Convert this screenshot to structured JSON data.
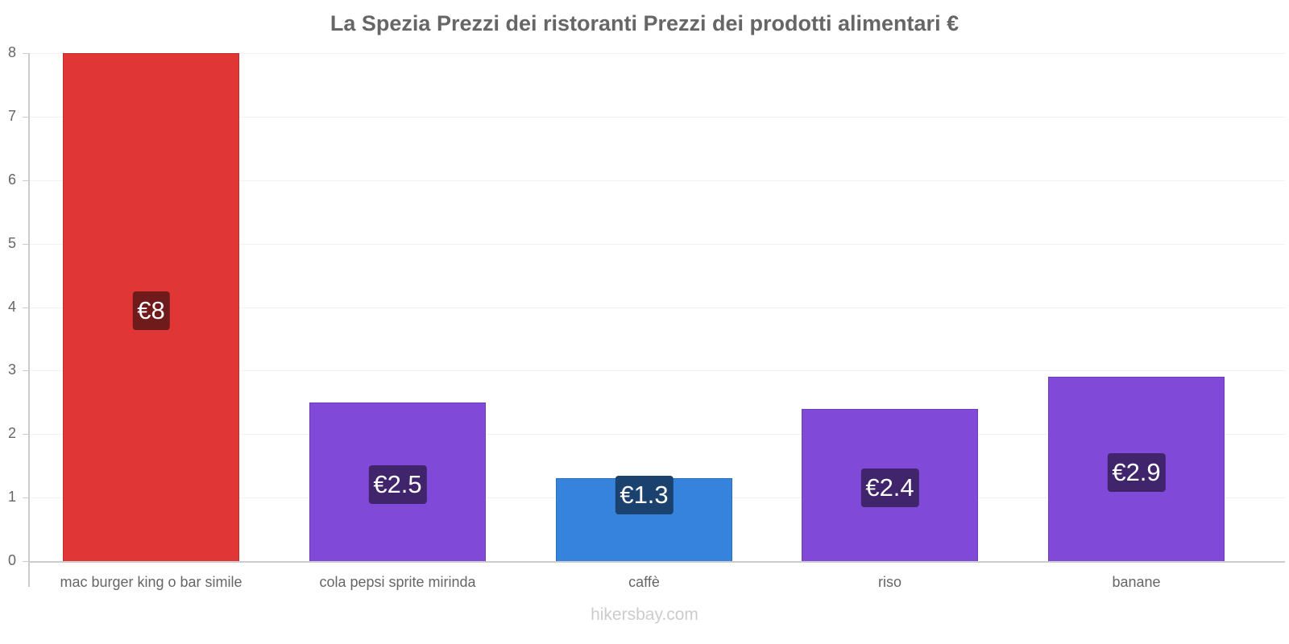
{
  "chart_data": {
    "type": "bar",
    "title": "La Spezia Prezzi dei ristoranti Prezzi dei prodotti alimentari €",
    "xlabel": "",
    "ylabel": "",
    "ylim": [
      0,
      8
    ],
    "yticks": [
      0,
      1,
      2,
      3,
      4,
      5,
      6,
      7,
      8
    ],
    "grid": true,
    "legend": "none",
    "categories": [
      "mac burger king o bar simile",
      "cola pepsi sprite mirinda",
      "caffè",
      "riso",
      "banane"
    ],
    "values": [
      8,
      2.5,
      1.3,
      2.4,
      2.9
    ],
    "value_labels": [
      "€8",
      "€2.5",
      "€1.3",
      "€2.4",
      "€2.9"
    ],
    "bar_colors": [
      "#e03636",
      "#8049d8",
      "#3683dd",
      "#8049d8",
      "#8049d8"
    ],
    "label_bg_colors": [
      "#701b1b",
      "#40246c",
      "#1b416e",
      "#40246c",
      "#40246c"
    ]
  },
  "title": "La Spezia Prezzi dei ristoranti Prezzi dei prodotti alimentari €",
  "y_tick_labels": [
    "0",
    "1",
    "2",
    "3",
    "4",
    "5",
    "6",
    "7",
    "8"
  ],
  "watermark": "hikersbay.com"
}
